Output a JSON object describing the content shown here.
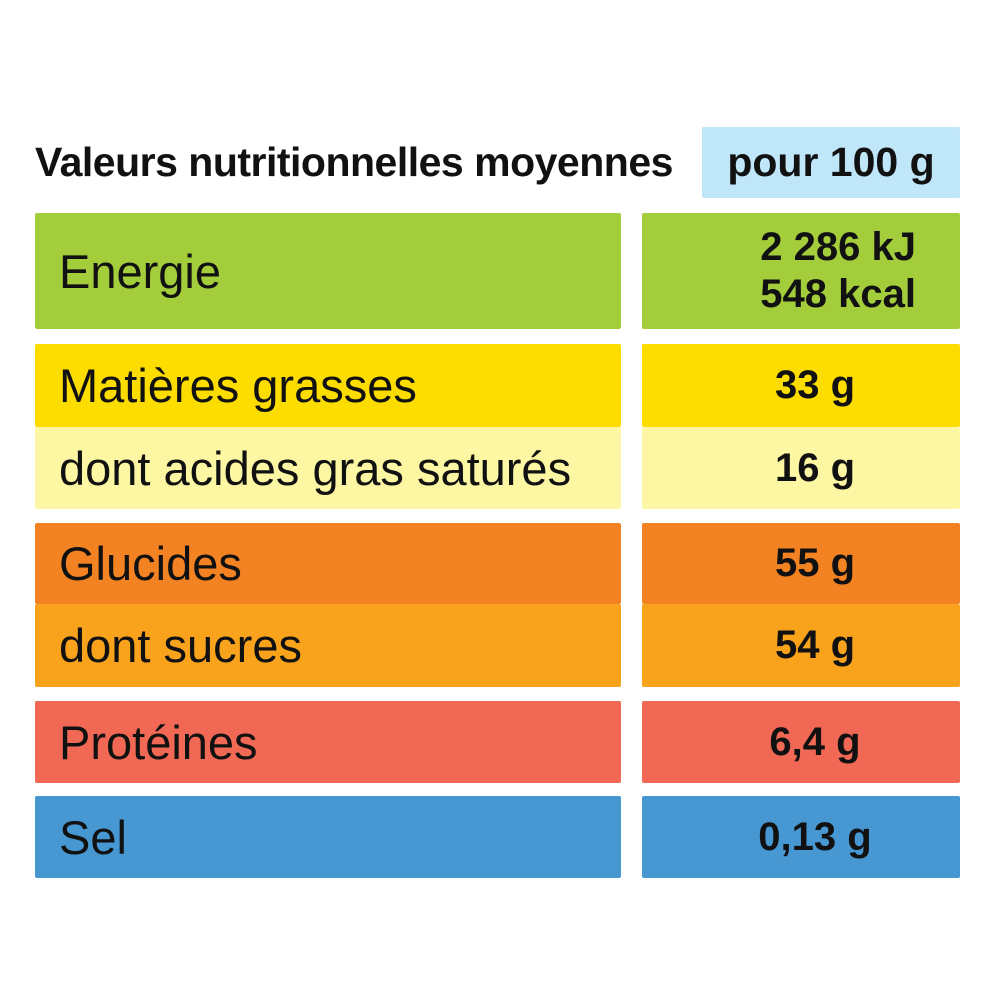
{
  "header": {
    "title": "Valeurs nutritionnelles moyennes",
    "unit": "pour 100 g",
    "unit_color": "#bfe6f9"
  },
  "rows": [
    {
      "label": "Energie",
      "value_kj": "2 286 kJ",
      "value_kcal": "548 kcal",
      "color": "#a4cd3c"
    },
    {
      "label": "Matières grasses",
      "value": "33 g",
      "color": "#fddc00"
    },
    {
      "label": "dont acides gras saturés",
      "value": "16 g",
      "color": "#fdf7a4"
    },
    {
      "label": "Glucides",
      "value": "55 g",
      "color": "#f28222"
    },
    {
      "label": "dont sucres",
      "value": "54 g",
      "color": "#f9a31c"
    },
    {
      "label": "Protéines",
      "value": "6,4 g",
      "color": "#f16955"
    },
    {
      "label": "Sel",
      "value": "0,13 g",
      "color": "#4797d2"
    }
  ]
}
